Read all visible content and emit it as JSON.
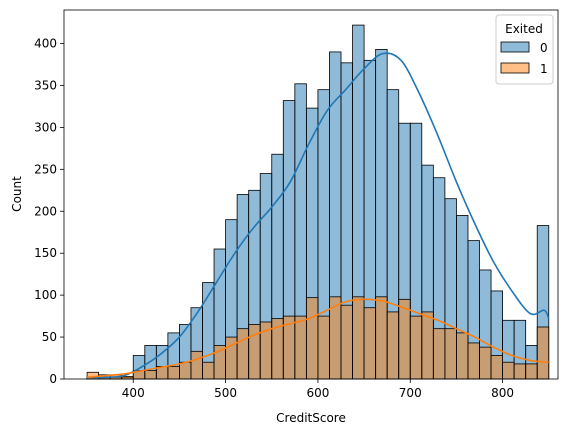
{
  "chart_data": {
    "type": "histogram",
    "xlabel": "CreditScore",
    "ylabel": "Count",
    "xlim": [
      325,
      860
    ],
    "ylim": [
      0,
      440
    ],
    "x_ticks": [
      400,
      500,
      600,
      700,
      800
    ],
    "y_ticks": [
      0,
      50,
      100,
      150,
      200,
      250,
      300,
      350,
      400
    ],
    "grid": false,
    "legend": {
      "title": "Exited",
      "placement": "top-right",
      "entries": [
        {
          "label": "0",
          "color": "#1f77b4"
        },
        {
          "label": "1",
          "color": "#ff7f0e"
        }
      ]
    },
    "bin_edges": [
      350,
      362.5,
      375,
      387.5,
      400,
      412.5,
      425,
      437.5,
      450,
      462.5,
      475,
      487.5,
      500,
      512.5,
      525,
      537.5,
      550,
      562.5,
      575,
      587.5,
      600,
      612.5,
      625,
      637.5,
      650,
      662.5,
      675,
      687.5,
      700,
      712.5,
      725,
      737.5,
      750,
      762.5,
      775,
      787.5,
      800,
      812.5,
      825,
      837.5,
      850
    ],
    "series": [
      {
        "name": "0",
        "color": "#1f77b4",
        "values": [
          2,
          2,
          2,
          2,
          28,
          40,
          40,
          55,
          65,
          85,
          115,
          155,
          190,
          220,
          225,
          245,
          268,
          332,
          352,
          323,
          345,
          390,
          377,
          422,
          380,
          393,
          345,
          305,
          305,
          255,
          240,
          215,
          195,
          165,
          130,
          105,
          70,
          70,
          40,
          183
        ],
        "kde": [
          [
            350,
            2
          ],
          [
            370,
            2
          ],
          [
            390,
            4
          ],
          [
            410,
            15
          ],
          [
            430,
            30
          ],
          [
            450,
            50
          ],
          [
            470,
            80
          ],
          [
            490,
            115
          ],
          [
            510,
            150
          ],
          [
            530,
            180
          ],
          [
            550,
            205
          ],
          [
            570,
            235
          ],
          [
            590,
            280
          ],
          [
            610,
            320
          ],
          [
            630,
            345
          ],
          [
            650,
            370
          ],
          [
            670,
            388
          ],
          [
            690,
            380
          ],
          [
            710,
            340
          ],
          [
            730,
            290
          ],
          [
            750,
            235
          ],
          [
            770,
            185
          ],
          [
            790,
            140
          ],
          [
            810,
            105
          ],
          [
            830,
            78
          ],
          [
            845,
            82
          ],
          [
            850,
            72
          ]
        ]
      },
      {
        "name": "1",
        "color": "#ff7f0e",
        "values": [
          8,
          5,
          5,
          3,
          10,
          10,
          15,
          15,
          20,
          33,
          20,
          40,
          50,
          60,
          65,
          68,
          72,
          75,
          75,
          97,
          75,
          98,
          88,
          98,
          85,
          98,
          80,
          95,
          75,
          80,
          60,
          60,
          55,
          43,
          38,
          28,
          20,
          18,
          18,
          62
        ],
        "kde": [
          [
            350,
            2
          ],
          [
            370,
            4
          ],
          [
            390,
            6
          ],
          [
            410,
            10
          ],
          [
            430,
            14
          ],
          [
            450,
            18
          ],
          [
            470,
            24
          ],
          [
            490,
            32
          ],
          [
            510,
            42
          ],
          [
            530,
            52
          ],
          [
            550,
            60
          ],
          [
            570,
            66
          ],
          [
            590,
            72
          ],
          [
            610,
            82
          ],
          [
            630,
            92
          ],
          [
            650,
            95
          ],
          [
            670,
            93
          ],
          [
            690,
            86
          ],
          [
            710,
            78
          ],
          [
            730,
            70
          ],
          [
            750,
            60
          ],
          [
            770,
            50
          ],
          [
            790,
            38
          ],
          [
            810,
            28
          ],
          [
            830,
            22
          ],
          [
            850,
            20
          ]
        ]
      }
    ]
  }
}
